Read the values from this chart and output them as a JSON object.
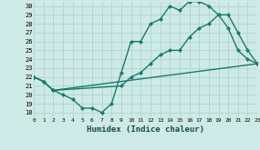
{
  "xlabel": "Humidex (Indice chaleur)",
  "background_color": "#ceeae6",
  "grid_color": "#aed4d0",
  "line_color": "#1a7a6e",
  "xlim": [
    0,
    23
  ],
  "ylim": [
    17.5,
    30.5
  ],
  "xticks": [
    0,
    1,
    2,
    3,
    4,
    5,
    6,
    7,
    8,
    9,
    10,
    11,
    12,
    13,
    14,
    15,
    16,
    17,
    18,
    19,
    20,
    21,
    22,
    23
  ],
  "yticks": [
    18,
    19,
    20,
    21,
    22,
    23,
    24,
    25,
    26,
    27,
    28,
    29,
    30
  ],
  "line1_x": [
    0,
    1,
    2,
    3,
    4,
    5,
    6,
    7,
    8,
    9,
    10,
    11,
    12,
    13,
    14,
    15,
    16,
    17,
    18,
    19,
    20,
    21,
    22,
    23
  ],
  "line1_y": [
    22,
    21.5,
    20.5,
    20,
    19.5,
    18.5,
    18.5,
    18,
    19,
    22.5,
    26,
    26,
    28,
    28.5,
    30,
    29.5,
    30.5,
    30.5,
    30,
    29,
    27.5,
    25,
    24,
    23.5
  ],
  "line2_x": [
    0,
    1,
    2,
    9,
    10,
    11,
    12,
    13,
    14,
    15,
    16,
    17,
    18,
    19,
    20,
    21,
    22,
    23
  ],
  "line2_y": [
    22,
    21.5,
    20.5,
    21,
    22,
    22.5,
    23.5,
    24.5,
    25,
    25,
    26.5,
    27.5,
    28,
    29,
    29,
    27,
    25,
    23.5
  ],
  "line3_x": [
    0,
    1,
    2,
    23
  ],
  "line3_y": [
    22,
    21.5,
    20.5,
    23.5
  ],
  "linewidth": 1.0,
  "markersize": 2.5
}
